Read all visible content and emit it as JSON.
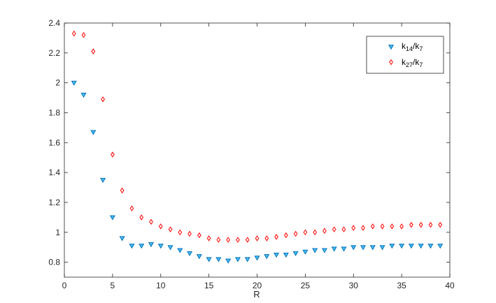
{
  "chart_data": {
    "type": "scatter",
    "xlabel": "R",
    "ylabel": "",
    "title": "",
    "xlim": [
      0,
      40
    ],
    "ylim": [
      0.7,
      2.4
    ],
    "xticks": [
      "0",
      "5",
      "10",
      "15",
      "20",
      "25",
      "30",
      "35",
      "40"
    ],
    "yticks": [
      "0.8",
      "1",
      "1.2",
      "1.4",
      "1.6",
      "1.8",
      "2",
      "2.2",
      "2.4"
    ],
    "grid": false,
    "legend_position": "top-right",
    "series": [
      {
        "name": "k14/k7",
        "label_main_1": "k",
        "label_sub_1": "14",
        "label_sep": "/k",
        "label_sub_2": "7",
        "marker": "triangle-down",
        "color": "#0072BD",
        "fill": "#4DBEEE",
        "x": [
          1,
          2,
          3,
          4,
          5,
          6,
          7,
          8,
          9,
          10,
          11,
          12,
          13,
          14,
          15,
          16,
          17,
          18,
          19,
          20,
          21,
          22,
          23,
          24,
          25,
          26,
          27,
          28,
          29,
          30,
          31,
          32,
          33,
          34,
          35,
          36,
          37,
          38,
          39
        ],
        "y": [
          2.0,
          1.92,
          1.67,
          1.35,
          1.1,
          0.96,
          0.91,
          0.91,
          0.92,
          0.91,
          0.9,
          0.88,
          0.86,
          0.84,
          0.82,
          0.82,
          0.81,
          0.82,
          0.82,
          0.83,
          0.84,
          0.85,
          0.85,
          0.86,
          0.87,
          0.88,
          0.88,
          0.89,
          0.89,
          0.9,
          0.9,
          0.9,
          0.9,
          0.91,
          0.91,
          0.91,
          0.91,
          0.91,
          0.91
        ]
      },
      {
        "name": "k27/k7",
        "label_main_1": "k",
        "label_sub_1": "27",
        "label_sep": "/k",
        "label_sub_2": "7",
        "marker": "diamond",
        "color": "#FF0000",
        "fill": "#FFFFFF",
        "x": [
          1,
          2,
          3,
          4,
          5,
          6,
          7,
          8,
          9,
          10,
          11,
          12,
          13,
          14,
          15,
          16,
          17,
          18,
          19,
          20,
          21,
          22,
          23,
          24,
          25,
          26,
          27,
          28,
          29,
          30,
          31,
          32,
          33,
          34,
          35,
          36,
          37,
          38,
          39
        ],
        "y": [
          2.33,
          2.32,
          2.21,
          1.89,
          1.52,
          1.28,
          1.16,
          1.1,
          1.07,
          1.04,
          1.02,
          1.0,
          0.99,
          0.98,
          0.96,
          0.95,
          0.95,
          0.95,
          0.95,
          0.96,
          0.96,
          0.97,
          0.98,
          0.99,
          1.0,
          1.0,
          1.01,
          1.02,
          1.02,
          1.03,
          1.03,
          1.04,
          1.04,
          1.04,
          1.04,
          1.05,
          1.05,
          1.05,
          1.05
        ]
      }
    ]
  }
}
